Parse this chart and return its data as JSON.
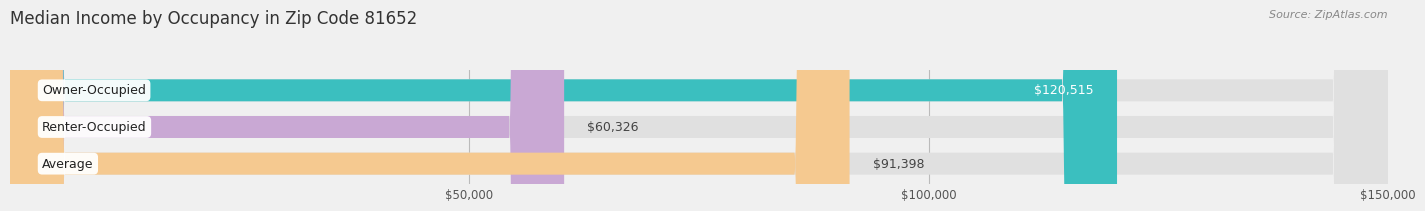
{
  "title": "Median Income by Occupancy in Zip Code 81652",
  "source": "Source: ZipAtlas.com",
  "categories": [
    "Owner-Occupied",
    "Renter-Occupied",
    "Average"
  ],
  "values": [
    120515,
    60326,
    91398
  ],
  "bar_colors": [
    "#3bbfbf",
    "#c9a8d4",
    "#f5c990"
  ],
  "bar_labels": [
    "$120,515",
    "$60,326",
    "$91,398"
  ],
  "xlim": [
    0,
    150000
  ],
  "xticks": [
    50000,
    100000,
    150000
  ],
  "xticklabels": [
    "$50,000",
    "$100,000",
    "$150,000"
  ],
  "background_color": "#f0f0f0",
  "bar_background_color": "#e0e0e0",
  "title_fontsize": 12,
  "bar_height": 0.6,
  "bar_label_fontsize": 9,
  "category_fontsize": 9
}
